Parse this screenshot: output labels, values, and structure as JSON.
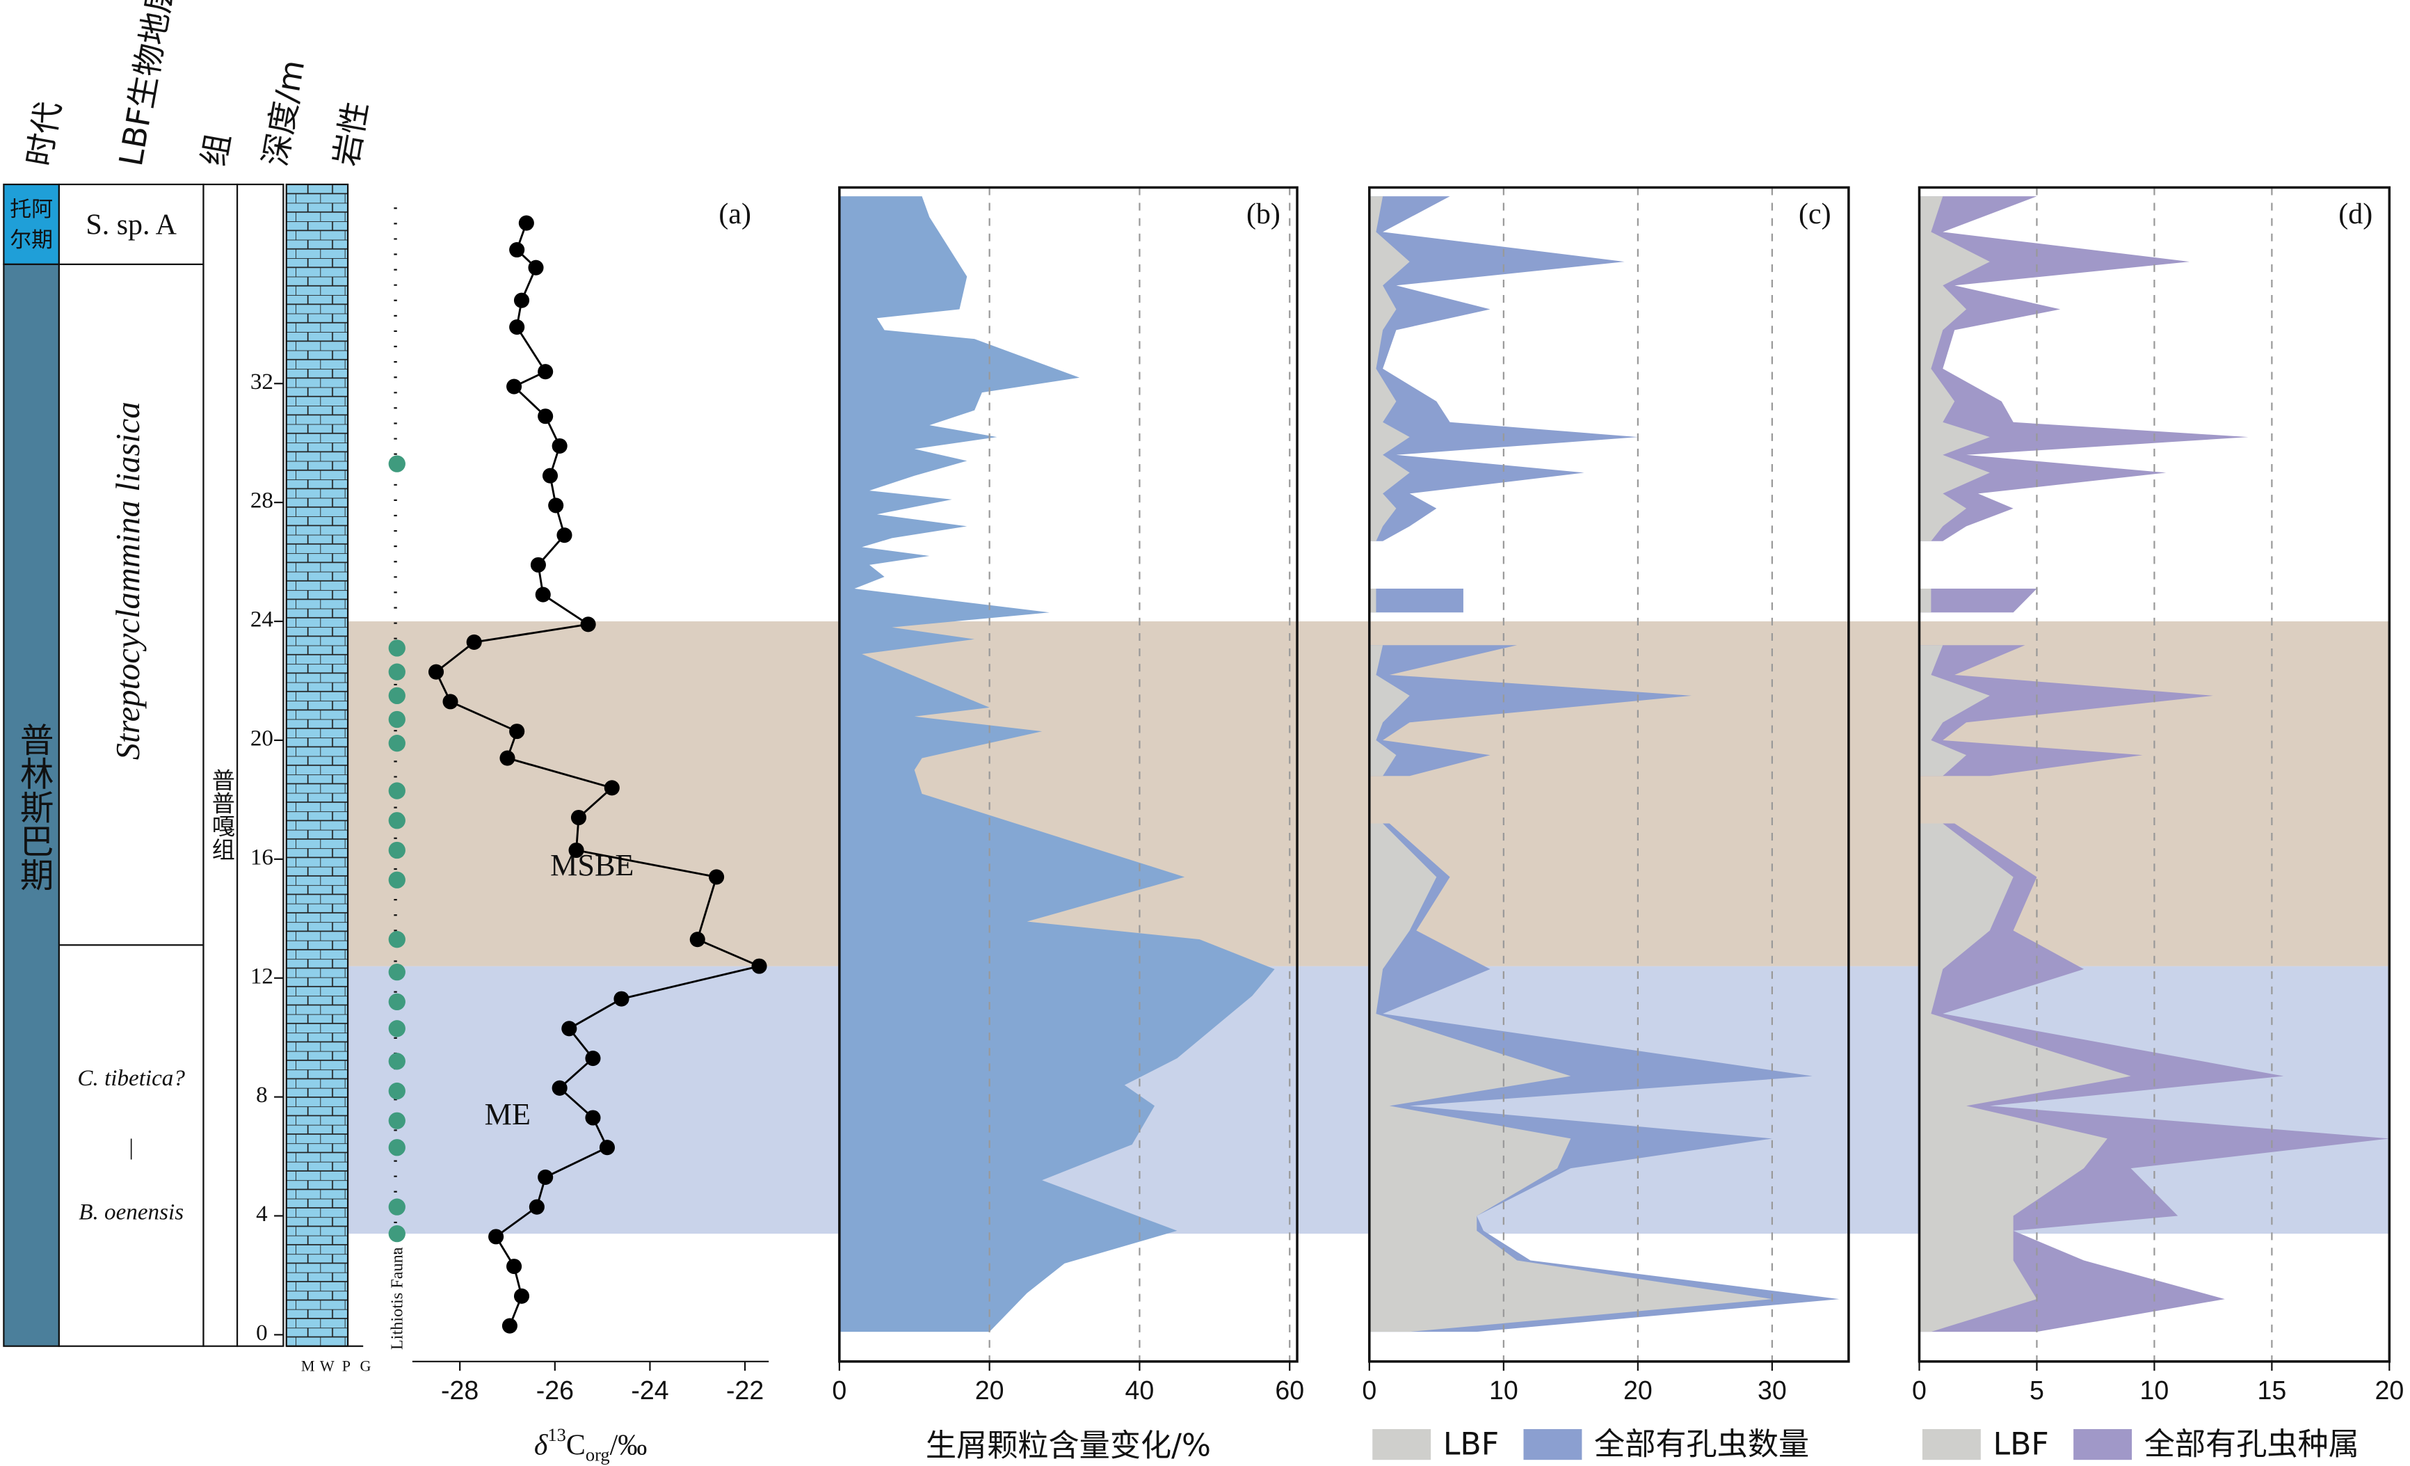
{
  "headers": [
    "时代",
    "LBF生物地层",
    "组",
    "深度/m",
    "岩性"
  ],
  "stages": {
    "toarcian": [
      "托阿",
      "尔期"
    ],
    "pliensbachian": "普林斯巴期"
  },
  "biozones": [
    "S. sp. A",
    "Streptocyclammina liasica",
    "C. tibetica?",
    "|",
    "B. oenensis"
  ],
  "formation": "普普嘎组",
  "lithology_labels": [
    "M",
    "W",
    "P",
    "G"
  ],
  "fauna": {
    "label": "Lithiotis Fauna",
    "color": "#3f9b7e",
    "depths": [
      29.3,
      23.1,
      22.3,
      21.5,
      20.7,
      19.9,
      18.3,
      17.3,
      16.3,
      15.3,
      13.3,
      12.2,
      11.2,
      10.3,
      9.2,
      8.2,
      7.2,
      6.3,
      4.3,
      3.4
    ]
  },
  "depth_axis": {
    "ylim": [
      -0.9,
      38.7
    ],
    "yticks": [
      0,
      4,
      8,
      12,
      16,
      20,
      24,
      28,
      32
    ]
  },
  "events": [
    {
      "name": "ME",
      "range": [
        3.4,
        12.4
      ],
      "color": "#c9d3ea"
    },
    {
      "name": "MSBE",
      "range": [
        12.4,
        24
      ],
      "color": "#dccfc1"
    }
  ],
  "chart_data": [
    {
      "type": "line",
      "label": "(a)",
      "xlabel": [
        "δ",
        "13",
        "C",
        "org",
        "/‰"
      ],
      "xlim": [
        -29,
        -21.5
      ],
      "xticks": [
        -28,
        -26,
        -24,
        -22
      ],
      "series": [
        {
          "color": "#000000",
          "values": [
            -26.95,
            -26.7,
            -26.86,
            -27.24,
            -26.38,
            -26.2,
            -24.9,
            -25.2,
            -25.9,
            -25.2,
            -25.7,
            -24.6,
            -21.7,
            -23.0,
            -22.6,
            -25.55,
            -25.5,
            -24.8,
            -27.0,
            -26.8,
            -28.2,
            -28.5,
            -27.7,
            -25.3,
            -26.25,
            -26.35,
            -25.8,
            -25.98,
            -26.1,
            -25.9,
            -26.2,
            -26.86,
            -26.2,
            -26.8,
            -26.7,
            -26.4,
            -26.8,
            -26.6
          ],
          "depth": [
            0.3,
            1.3,
            2.3,
            3.3,
            4.3,
            5.3,
            6.3,
            7.3,
            8.3,
            9.3,
            10.3,
            11.3,
            12.4,
            13.3,
            15.4,
            16.3,
            17.4,
            18.4,
            19.4,
            20.3,
            21.3,
            22.3,
            23.3,
            23.9,
            24.9,
            25.9,
            26.9,
            27.9,
            28.9,
            29.9,
            30.9,
            31.9,
            32.4,
            33.9,
            34.8,
            35.9,
            36.5,
            37.4
          ]
        }
      ]
    },
    {
      "type": "area",
      "label": "(b)",
      "xlabel": "生屑颗粒含量变化/%",
      "xlim": [
        0,
        61
      ],
      "xticks": [
        0,
        20,
        40,
        60
      ],
      "grid": true,
      "depth": [
        38.3,
        37.6,
        35.6,
        34.5,
        34.2,
        33.8,
        33.5,
        32.2,
        31.7,
        31.1,
        30.6,
        30.2,
        29.8,
        29.4,
        28.9,
        28.4,
        28.1,
        27.6,
        27.2,
        26.8,
        26.5,
        26.2,
        25.9,
        25.5,
        25.1,
        24.3,
        23.8,
        23.4,
        22.9,
        21.1,
        20.8,
        20.3,
        19.4,
        19.0,
        18.2,
        15.4,
        13.9,
        13.3,
        12.3,
        11.4,
        9.3,
        8.4,
        7.7,
        6.4,
        5.2,
        3.5,
        2.4,
        1.4,
        0.1
      ],
      "series": [
        {
          "color": "#84a7d3",
          "values": [
            11,
            12,
            17,
            16,
            5,
            6,
            18,
            32,
            19,
            18,
            12,
            21,
            10,
            17,
            10,
            4,
            15,
            5,
            17,
            7,
            3,
            12,
            4,
            6,
            2,
            28,
            7,
            18,
            3,
            20,
            10,
            27,
            11,
            10,
            11,
            46,
            25,
            48,
            58,
            55,
            45,
            38,
            42,
            39,
            27,
            45,
            30,
            25,
            20
          ]
        }
      ]
    },
    {
      "type": "area",
      "label": "(c)",
      "xlim": [
        0,
        35.7
      ],
      "xticks": [
        0,
        10,
        20,
        30
      ],
      "grid": true,
      "depth": [
        38.3,
        37.1,
        36.1,
        35.3,
        34.5,
        33.8,
        32.5,
        31.4,
        30.7,
        30.2,
        29.6,
        29.0,
        28.3,
        27.8,
        27.2,
        26.7,
        26.0,
        25.1,
        24.3,
        23.7,
        23.2,
        22.2,
        21.5,
        20.6,
        20.0,
        19.5,
        18.8,
        18.3,
        17.2,
        15.4,
        13.6,
        12.3,
        10.8,
        8.7,
        7.7,
        6.6,
        5.6,
        4.0,
        3.5,
        2.5,
        1.2,
        0.1
      ],
      "series": [
        {
          "name": "LBF",
          "color": "#cfcfcc",
          "values": [
            1,
            0.5,
            3,
            1,
            2,
            1,
            0.5,
            2,
            1,
            3,
            1,
            3,
            1,
            2,
            1,
            0.5,
            null,
            0.5,
            0.5,
            null,
            1,
            0.5,
            3,
            1,
            0.5,
            2,
            1,
            null,
            1,
            5,
            3,
            1,
            0.5,
            15,
            1.5,
            15,
            14,
            8,
            8,
            11,
            30,
            3
          ]
        },
        {
          "name": "全部有孔虫数量",
          "color": "#8b9fd0",
          "values": [
            6,
            1,
            19,
            2,
            9,
            2,
            1,
            5,
            6,
            20,
            2,
            16,
            3,
            5,
            3,
            1,
            null,
            7,
            7,
            null,
            11,
            1.5,
            24,
            3,
            1,
            9,
            3,
            null,
            1.5,
            6,
            3.5,
            9,
            1,
            33,
            3,
            30,
            15,
            8,
            8.5,
            12,
            35,
            8
          ]
        }
      ]
    },
    {
      "type": "area",
      "label": "(d)",
      "xlim": [
        0,
        20
      ],
      "xticks": [
        0,
        5,
        10,
        15,
        20
      ],
      "grid": true,
      "depth": [
        38.3,
        37.1,
        36.1,
        35.3,
        34.5,
        33.8,
        32.5,
        31.4,
        30.7,
        30.2,
        29.6,
        29.0,
        28.3,
        27.8,
        27.2,
        26.7,
        26.0,
        25.1,
        24.3,
        23.7,
        23.2,
        22.2,
        21.5,
        20.6,
        20.0,
        19.5,
        18.8,
        18.3,
        17.2,
        15.4,
        13.6,
        12.3,
        10.8,
        8.7,
        7.7,
        6.6,
        5.6,
        4.0,
        3.5,
        2.5,
        1.2,
        0.1
      ],
      "series": [
        {
          "name": "LBF",
          "color": "#cfcfcc",
          "values": [
            1,
            0.5,
            3,
            1,
            2,
            1,
            0.5,
            1.5,
            1,
            3,
            1,
            3,
            1,
            2,
            1,
            0.5,
            null,
            0.5,
            0.5,
            null,
            1,
            0.5,
            3,
            1,
            0.5,
            2,
            1,
            null,
            1,
            4,
            3,
            1,
            0.5,
            9,
            2,
            8,
            7,
            4,
            4,
            4,
            5,
            0.5
          ]
        },
        {
          "name": "全部有孔虫种属",
          "color": "#a098c8",
          "values": [
            5,
            1,
            11.5,
            1.5,
            6,
            1.5,
            1,
            3.5,
            4,
            14,
            2,
            10.5,
            2.5,
            4,
            2,
            1,
            null,
            5,
            4,
            null,
            4.5,
            1.5,
            12.5,
            2,
            1,
            9.5,
            3,
            null,
            1.5,
            5,
            4,
            7,
            1,
            15.5,
            3,
            20,
            9,
            11,
            4,
            7,
            13,
            5
          ]
        }
      ]
    }
  ]
}
